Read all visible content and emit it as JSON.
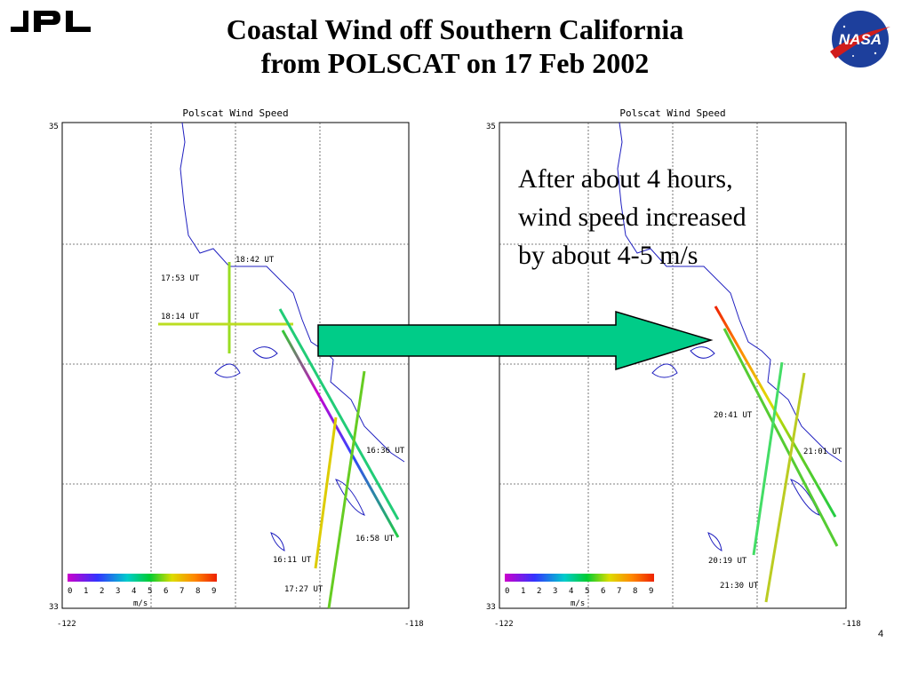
{
  "slide": {
    "title_line1": "Coastal Wind off Southern California",
    "title_line2": "from POLSCAT on 17 Feb 2002",
    "annotation_line1": "After about 4 hours,",
    "annotation_line2": "wind speed increased",
    "annotation_line3": "by about 4-5 m/s",
    "slide_number": "4"
  },
  "logos": {
    "left": "JPL",
    "right": "NASA"
  },
  "colors": {
    "arrow_fill": "#00CC88",
    "arrow_stroke": "#000000",
    "coastline": "#2020C0"
  },
  "maps": [
    {
      "title": "Polscat Wind Speed",
      "lat_top": "35",
      "lat_bottom": "33",
      "lon_left": "-122",
      "lon_right": "-118",
      "colorbar_ticks": [
        "0",
        "1",
        "2",
        "3",
        "4",
        "5",
        "6",
        "7",
        "8",
        "9"
      ],
      "colorbar_unit": "m/s",
      "pass_labels": [
        "18:42 UT",
        "17:53 UT",
        "18:14 UT",
        "16:36 UT",
        "16:58 UT",
        "16:11 UT",
        "17:27 UT"
      ]
    },
    {
      "title": "Polscat Wind Speed",
      "lat_top": "35",
      "lat_bottom": "33",
      "lon_left": "-122",
      "lon_right": "-118",
      "colorbar_ticks": [
        "0",
        "1",
        "2",
        "3",
        "4",
        "5",
        "6",
        "7",
        "8",
        "9"
      ],
      "colorbar_unit": "m/s",
      "pass_labels": [
        "20:41 UT",
        "21:01 UT",
        "20:19 UT",
        "21:30 UT"
      ]
    }
  ]
}
